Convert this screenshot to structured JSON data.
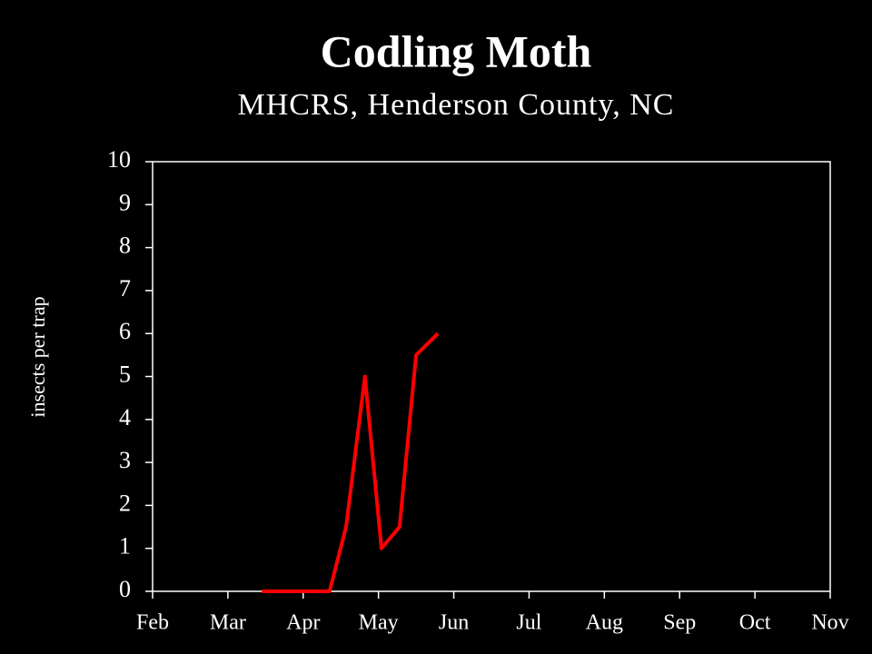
{
  "chart_data": {
    "type": "line",
    "title": "Codling Moth",
    "subtitle": "MHCRS, Henderson County, NC",
    "ylabel": "insects per trap",
    "x": [
      1.45,
      2.35,
      2.57,
      2.82,
      3.04,
      3.28,
      3.5,
      3.79
    ],
    "values": [
      0,
      0,
      1.5,
      5,
      1,
      1.5,
      5.5,
      6
    ],
    "color": "#ff0000",
    "xlim": [
      0,
      9
    ],
    "xticks": [
      {
        "value": 0,
        "label": "Feb"
      },
      {
        "value": 1,
        "label": "Mar"
      },
      {
        "value": 2,
        "label": "Apr"
      },
      {
        "value": 3,
        "label": "May"
      },
      {
        "value": 4,
        "label": "Jun"
      },
      {
        "value": 5,
        "label": "Jul"
      },
      {
        "value": 6,
        "label": "Aug"
      },
      {
        "value": 7,
        "label": "Sep"
      },
      {
        "value": 8,
        "label": "Oct"
      },
      {
        "value": 9,
        "label": "Nov"
      }
    ],
    "ylim": [
      0,
      10
    ],
    "yticks": [
      0,
      1,
      2,
      3,
      4,
      5,
      6,
      7,
      8,
      9,
      10
    ]
  }
}
